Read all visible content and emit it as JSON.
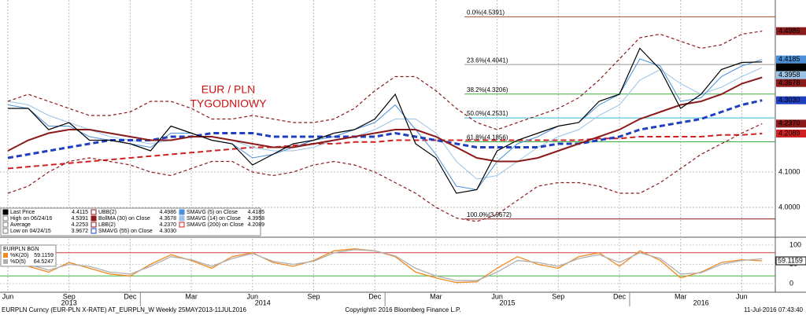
{
  "chart_data": [
    {
      "type": "line",
      "annotation": [
        "EUR / PLN",
        "TYGODNIOWY"
      ],
      "categories": [
        "Jun",
        null,
        null,
        "Sep",
        null,
        null,
        "Dec",
        null,
        null,
        "Mar",
        null,
        null,
        "Jun",
        null,
        null,
        "Sep",
        null,
        null,
        "Dec",
        null,
        null,
        "Mar",
        null,
        null,
        "Jun",
        null,
        null,
        "Sep",
        null,
        null,
        "Dec",
        null,
        null,
        "Mar",
        null,
        null,
        "Jun",
        null
      ],
      "year_labels": [
        "2013",
        "2014",
        "2015",
        "2016"
      ],
      "ylim": [
        3.92,
        4.5867
      ],
      "yticks": [
        {
          "value": 4.0,
          "label": "4.0000"
        },
        {
          "value": 4.1,
          "label": "4.1000"
        }
      ],
      "grid": true,
      "series": [
        {
          "name": "Last Price",
          "color": "#000000",
          "style": "solid",
          "width": 1.2,
          "last": {
            "value": 4.4115,
            "label": "4.4115"
          },
          "values": [
            4.28,
            4.28,
            4.22,
            4.24,
            4.19,
            4.19,
            4.18,
            4.16,
            4.23,
            4.21,
            4.19,
            4.18,
            4.12,
            4.15,
            4.18,
            4.19,
            4.21,
            4.22,
            4.25,
            4.32,
            4.18,
            4.14,
            4.04,
            4.05,
            4.16,
            4.19,
            4.21,
            4.23,
            4.24,
            4.3,
            4.32,
            4.45,
            4.39,
            4.28,
            4.32,
            4.39,
            4.41,
            4.4115
          ]
        },
        {
          "name": "UBB(2)",
          "color": "#8b1a1a",
          "style": "dashed",
          "width": 1.2,
          "last": {
            "value": 4.4986,
            "label": "4.4986"
          },
          "values": [
            4.3,
            4.32,
            4.3,
            4.28,
            4.26,
            4.26,
            4.27,
            4.3,
            4.3,
            4.28,
            4.25,
            4.25,
            4.26,
            4.25,
            4.24,
            4.24,
            4.25,
            4.28,
            4.33,
            4.37,
            4.37,
            4.33,
            4.28,
            4.24,
            4.22,
            4.24,
            4.26,
            4.28,
            4.31,
            4.36,
            4.42,
            4.48,
            4.49,
            4.47,
            4.45,
            4.46,
            4.49,
            4.4986
          ]
        },
        {
          "name": "BollMA (30) on Close",
          "color": "#8b1a1a",
          "style": "solid",
          "width": 2,
          "last": {
            "value": 4.3678,
            "label": "4.3678"
          },
          "values": [
            4.16,
            4.19,
            4.21,
            4.22,
            4.22,
            4.21,
            4.2,
            4.19,
            4.19,
            4.2,
            4.2,
            4.19,
            4.18,
            4.17,
            4.17,
            4.18,
            4.19,
            4.2,
            4.21,
            4.22,
            4.22,
            4.2,
            4.17,
            4.14,
            4.13,
            4.13,
            4.14,
            4.16,
            4.18,
            4.2,
            4.22,
            4.25,
            4.27,
            4.29,
            4.3,
            4.32,
            4.35,
            4.3678
          ]
        },
        {
          "name": "LBB(2)",
          "color": "#8b1a1a",
          "style": "dashed",
          "width": 1.2,
          "last": {
            "value": 4.237,
            "label": "4.2370"
          },
          "values": [
            4.04,
            4.06,
            4.1,
            4.13,
            4.14,
            4.13,
            4.12,
            4.1,
            4.09,
            4.11,
            4.13,
            4.13,
            4.1,
            4.09,
            4.1,
            4.12,
            4.13,
            4.12,
            4.1,
            4.07,
            4.04,
            4.0,
            3.97,
            3.96,
            3.98,
            4.02,
            4.06,
            4.07,
            4.07,
            4.06,
            4.04,
            4.04,
            4.07,
            4.11,
            4.15,
            4.18,
            4.21,
            4.237
          ]
        },
        {
          "name": "SMAVG (55) on Close",
          "color": "#1f3fbf",
          "style": "dashed",
          "width": 3,
          "last": {
            "value": 4.303,
            "label": "4.3030"
          },
          "values": [
            4.14,
            4.15,
            4.16,
            4.17,
            4.18,
            4.19,
            4.19,
            4.19,
            4.2,
            4.2,
            4.21,
            4.21,
            4.21,
            4.2,
            4.2,
            4.2,
            4.2,
            4.2,
            4.2,
            4.21,
            4.2,
            4.19,
            4.18,
            4.17,
            4.17,
            4.17,
            4.17,
            4.18,
            4.18,
            4.19,
            4.2,
            4.22,
            4.23,
            4.24,
            4.25,
            4.27,
            4.29,
            4.303
          ]
        },
        {
          "name": "SMAVG (5) on Close",
          "color": "#4a90d9",
          "style": "solid",
          "width": 1,
          "last": {
            "value": 4.4185,
            "label": "4.4185"
          },
          "values": [
            4.29,
            4.28,
            4.23,
            4.23,
            4.2,
            4.19,
            4.18,
            4.17,
            4.21,
            4.21,
            4.19,
            4.18,
            4.14,
            4.15,
            4.17,
            4.19,
            4.2,
            4.22,
            4.24,
            4.29,
            4.22,
            4.15,
            4.06,
            4.05,
            4.13,
            4.18,
            4.2,
            4.23,
            4.24,
            4.29,
            4.32,
            4.42,
            4.4,
            4.3,
            4.31,
            4.37,
            4.4,
            4.4185
          ]
        },
        {
          "name": "SMAVG (14) on Close",
          "color": "#9cc3e6",
          "style": "solid",
          "width": 1,
          "last": {
            "value": 4.3958,
            "label": "4.3958"
          },
          "values": [
            4.3,
            4.29,
            4.26,
            4.24,
            4.22,
            4.2,
            4.19,
            4.18,
            4.19,
            4.2,
            4.2,
            4.19,
            4.17,
            4.16,
            4.16,
            4.17,
            4.19,
            4.2,
            4.22,
            4.25,
            4.25,
            4.21,
            4.13,
            4.08,
            4.09,
            4.13,
            4.17,
            4.2,
            4.22,
            4.26,
            4.29,
            4.36,
            4.39,
            4.35,
            4.32,
            4.34,
            4.37,
            4.3958
          ]
        },
        {
          "name": "SMAVG (200) on Close",
          "color": "#d02020",
          "style": "dashed",
          "width": 2,
          "last": {
            "value": 4.2089,
            "label": "4.2089"
          },
          "values": [
            4.11,
            4.115,
            4.12,
            4.125,
            4.13,
            4.135,
            4.14,
            4.145,
            4.15,
            4.155,
            4.16,
            4.165,
            4.17,
            4.17,
            4.175,
            4.18,
            4.18,
            4.185,
            4.185,
            4.19,
            4.19,
            4.19,
            4.19,
            4.19,
            4.19,
            4.19,
            4.19,
            4.19,
            4.19,
            4.195,
            4.195,
            4.2,
            4.2,
            4.2,
            4.2,
            4.205,
            4.205,
            4.2089
          ]
        }
      ],
      "stats": [
        {
          "name": "High on 06/24/16",
          "value": 4.5391
        },
        {
          "name": "Average",
          "value": 4.2253
        },
        {
          "name": "Low on 04/24/15",
          "value": 3.9672
        }
      ],
      "fib_levels": [
        {
          "label": "0.0%(4.5391)",
          "value": 4.5391,
          "color": "#a0522d"
        },
        {
          "label": "23.6%(4.4041)",
          "value": 4.4041,
          "color": "#999999"
        },
        {
          "label": "38.2%(4.3206)",
          "value": 4.3206,
          "color": "#3cb043"
        },
        {
          "label": "50.0%(4.2531)",
          "value": 4.2531,
          "color": "#35b8d8"
        },
        {
          "label": "61.8%(4.1856)",
          "value": 4.1856,
          "color": "#3cb043"
        },
        {
          "label": "100.0%(3.9672)",
          "value": 3.9672,
          "color": "#8b1a1a"
        }
      ]
    },
    {
      "type": "line",
      "title": "EURPLN BGN",
      "ylim": [
        -22,
        114
      ],
      "yticks": [
        0,
        50,
        100
      ],
      "levels": [
        {
          "value": 80,
          "color": "#d04040"
        },
        {
          "value": 20,
          "color": "#40b040"
        }
      ],
      "series": [
        {
          "name": "%K(20)",
          "color": "#f08a24",
          "last": {
            "value": 59.1159,
            "label": "59.1159"
          },
          "values": [
            60,
            45,
            30,
            55,
            40,
            25,
            20,
            50,
            75,
            60,
            40,
            70,
            80,
            55,
            45,
            60,
            85,
            90,
            85,
            70,
            30,
            15,
            3,
            5,
            40,
            70,
            50,
            40,
            70,
            80,
            45,
            85,
            60,
            15,
            30,
            55,
            62,
            59.1159
          ]
        },
        {
          "name": "%D(5)",
          "color": "#b0b0b0",
          "last": {
            "value": 64.5247,
            "label": "64.5247"
          },
          "values": [
            65,
            50,
            35,
            50,
            45,
            30,
            25,
            45,
            70,
            62,
            45,
            65,
            78,
            58,
            50,
            58,
            80,
            88,
            85,
            72,
            40,
            20,
            8,
            8,
            30,
            60,
            55,
            45,
            65,
            75,
            55,
            80,
            65,
            25,
            28,
            50,
            60,
            64.5247
          ]
        }
      ]
    }
  ],
  "footer": {
    "left": "EURPLN Curncy (EUR-PLN X-RATE) AT_EURPLN_W  Weekly 25MAY2013-11JUL2016",
    "center": "Copyright© 2016 Bloomberg Finance L.P.",
    "right": "11-Jul-2016 07:43:40"
  }
}
